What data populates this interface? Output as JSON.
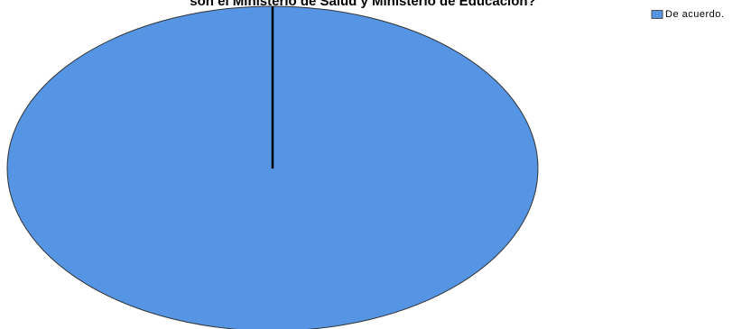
{
  "chart_data": {
    "type": "pie",
    "title": "son el Ministerio de Salud y Ministerio de Educación?",
    "categories": [
      "De acuerdo."
    ],
    "values": [
      100
    ],
    "colors": [
      "#5595e4"
    ],
    "legend": "top-right"
  }
}
